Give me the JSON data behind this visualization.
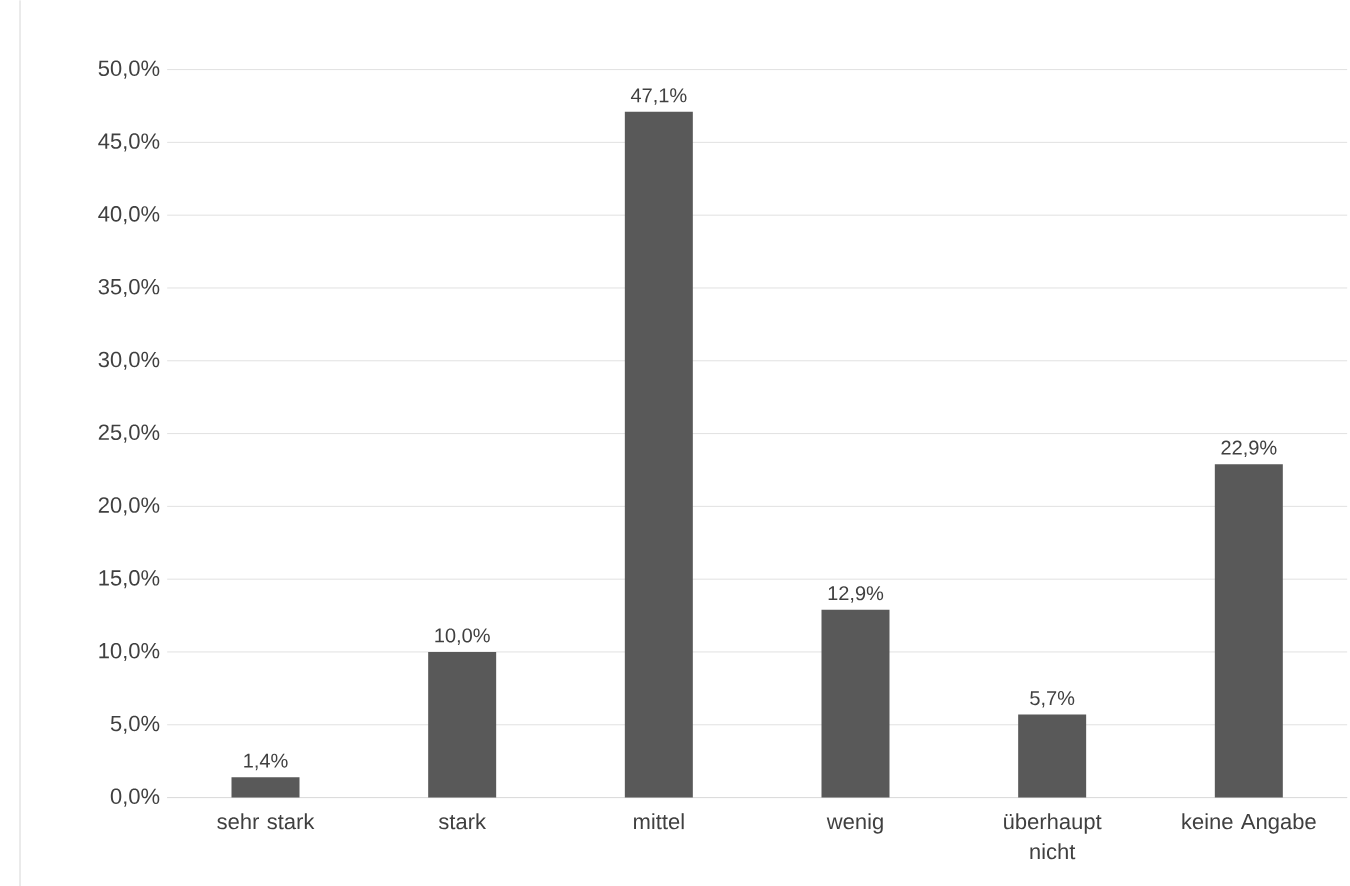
{
  "chart_data": {
    "type": "bar",
    "categories": [
      "sehr stark",
      "stark",
      "mittel",
      "wenig",
      "überhaupt nicht",
      "keine Angabe"
    ],
    "values": [
      1.4,
      10.0,
      47.1,
      12.9,
      5.7,
      22.9
    ],
    "value_labels": [
      "1,4%",
      "10,0%",
      "47,1%",
      "12,9%",
      "5,7%",
      "22,9%"
    ],
    "color": "#595959",
    "ylim": [
      0,
      50
    ],
    "yticks": [
      {
        "value": 0,
        "label": "0,0%"
      },
      {
        "value": 5,
        "label": "5,0%"
      },
      {
        "value": 10,
        "label": "10,0%"
      },
      {
        "value": 15,
        "label": "15,0%"
      },
      {
        "value": 20,
        "label": "20,0%"
      },
      {
        "value": 25,
        "label": "25,0%"
      },
      {
        "value": 30,
        "label": "30,0%"
      },
      {
        "value": 35,
        "label": "35,0%"
      },
      {
        "value": 40,
        "label": "40,0%"
      },
      {
        "value": 45,
        "label": "45,0%"
      },
      {
        "value": 50,
        "label": "50,0%"
      }
    ],
    "grid": "y"
  }
}
